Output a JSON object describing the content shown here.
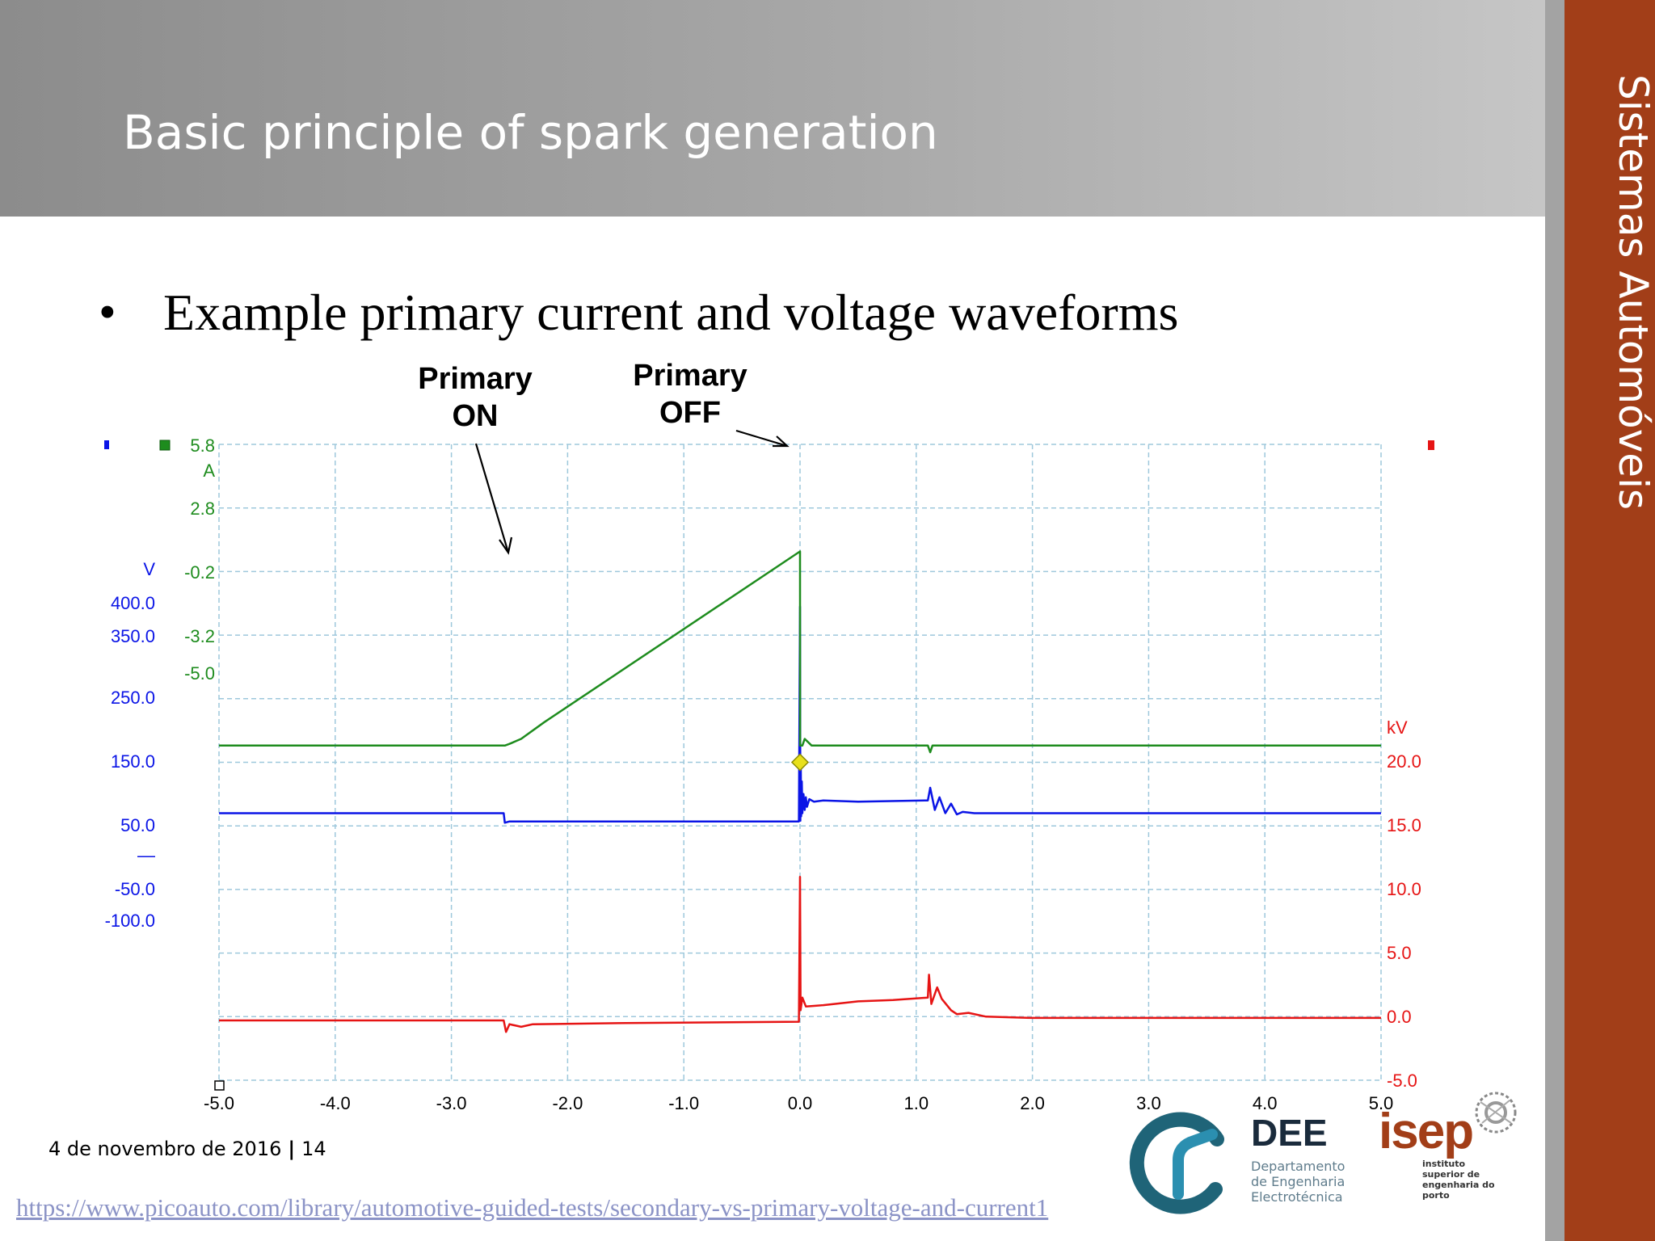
{
  "slide": {
    "title": "Basic principle of spark generation",
    "side_label": "Sistemas Automóveis",
    "bullet": "Example primary current and voltage waveforms",
    "callouts": {
      "on": [
        "Primary",
        "ON"
      ],
      "off": [
        "Primary",
        "OFF"
      ]
    },
    "footer": {
      "date": "4 de novembro de 2016",
      "separator": "|",
      "page": "14"
    },
    "source_link": "https://www.picoauto.com/library/automotive-guided-tests/secondary-vs-primary-voltage-and-current1",
    "logos": {
      "dee": {
        "name": "DEE",
        "lines": [
          "Departamento",
          "de Engenharia",
          "Electrotécnica"
        ]
      },
      "isep": {
        "name": "isep",
        "lines": [
          "instituto",
          "superior de",
          "engenharia do",
          "porto"
        ]
      }
    },
    "colors": {
      "side_band": "#a23e18",
      "header_start": "#8c8c8c",
      "header_end": "#c6c6c6"
    }
  },
  "chart_data": {
    "type": "line",
    "grid": true,
    "trigger_marker": {
      "x": 0.0,
      "y": 150.0,
      "series": "Primary voltage",
      "color": "#e8e01a"
    },
    "x_axis": {
      "ticks": [
        "-5.0",
        "-4.0",
        "-3.0",
        "-2.0",
        "-1.0",
        "0.0",
        "1.0",
        "2.0",
        "3.0",
        "4.0",
        "5.0"
      ],
      "range": [
        -5.0,
        5.0
      ]
    },
    "axes": {
      "current": {
        "unit": "A",
        "color": "#1e8c1e",
        "ticks": [
          "5.8",
          "2.8",
          "-0.2",
          "-3.2",
          "-5.0"
        ],
        "range": [
          -10.2,
          8.8
        ]
      },
      "voltage": {
        "unit": "V",
        "color": "#0a14e6",
        "ticks": [
          "400.0",
          "350.0",
          "250.0",
          "150.0",
          "50.0",
          "—",
          "-50.0",
          "-100.0"
        ],
        "range": [
          -350.0,
          650.0
        ]
      },
      "secondary": {
        "unit": "kV",
        "color": "#e61414",
        "ticks": [
          "20.0",
          "15.0",
          "10.0",
          "5.0",
          "0.0",
          "-5.0"
        ],
        "range": [
          -5.0,
          45.0
        ]
      }
    },
    "series": [
      {
        "color": "#1e8c1e",
        "axis": "current",
        "x": [
          -5.0,
          -2.54,
          -2.5,
          -2.4,
          -2.2,
          0.0,
          0.001,
          0.02,
          0.04,
          0.1,
          0.6,
          1.1,
          1.12,
          1.14,
          5.0
        ],
        "y": [
          -0.2,
          -0.2,
          -0.15,
          0.0,
          0.5,
          5.6,
          -0.2,
          -0.2,
          0.0,
          -0.2,
          -0.2,
          -0.2,
          -0.4,
          -0.2,
          -0.2
        ]
      },
      {
        "color": "#0a14e6",
        "axis": "voltage",
        "x": [
          -5.0,
          -2.55,
          -2.54,
          -2.5,
          -0.01,
          0.0,
          0.003,
          0.006,
          0.01,
          0.015,
          0.02,
          0.03,
          0.04,
          0.05,
          0.06,
          0.08,
          0.12,
          0.2,
          0.5,
          1.1,
          1.12,
          1.16,
          1.2,
          1.25,
          1.3,
          1.35,
          1.4,
          1.5,
          1.6,
          1.7,
          5.0
        ],
        "y": [
          70.0,
          70.0,
          55.0,
          57.0,
          57.0,
          395.0,
          58.0,
          150.0,
          65.0,
          120.0,
          70.0,
          100.0,
          75.0,
          95.0,
          80.0,
          92.0,
          88.0,
          90.0,
          88.0,
          90.0,
          110.0,
          75.0,
          95.0,
          70.0,
          85.0,
          68.0,
          72.0,
          70.0,
          70.0,
          70.0,
          70.0
        ]
      },
      {
        "color": "#e61414",
        "axis": "secondary",
        "x": [
          -5.0,
          -2.55,
          -2.53,
          -2.5,
          -2.4,
          -2.3,
          -1.5,
          -0.01,
          0.0,
          0.005,
          0.02,
          0.05,
          0.2,
          0.5,
          0.8,
          1.1,
          1.11,
          1.13,
          1.18,
          1.22,
          1.3,
          1.35,
          1.45,
          1.6,
          2.0,
          5.0
        ],
        "y": [
          -0.3,
          -0.3,
          -1.2,
          -0.6,
          -0.8,
          -0.6,
          -0.5,
          -0.4,
          11.0,
          0.5,
          1.5,
          0.8,
          0.9,
          1.2,
          1.3,
          1.5,
          3.3,
          1.0,
          2.3,
          1.4,
          0.5,
          0.2,
          0.3,
          0.0,
          -0.1,
          -0.1
        ]
      }
    ]
  }
}
